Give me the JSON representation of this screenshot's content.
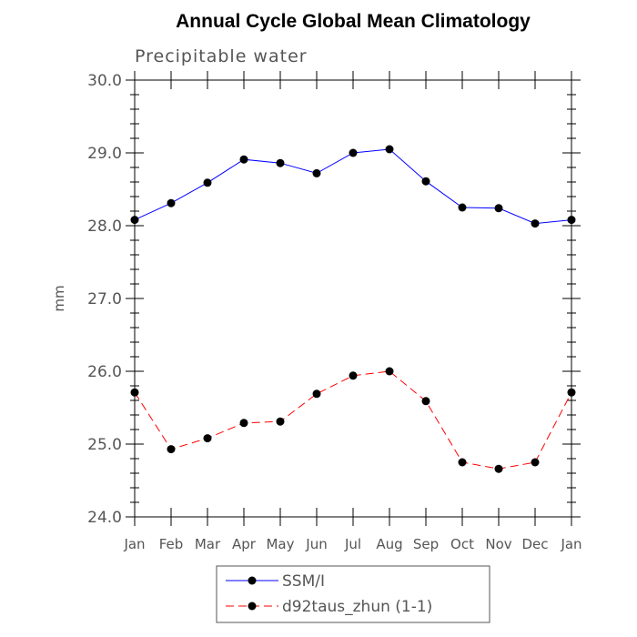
{
  "chart_data": {
    "type": "line",
    "title": "Annual Cycle Global Mean Climatology",
    "subtitle": "Precipitable water",
    "xlabel": "",
    "ylabel": "mm",
    "ylim": [
      24.0,
      30.0
    ],
    "yticks": [
      "24.0",
      "25.0",
      "26.0",
      "27.0",
      "28.0",
      "29.0",
      "30.0"
    ],
    "categories": [
      "Jan",
      "Feb",
      "Mar",
      "Apr",
      "May",
      "Jun",
      "Jul",
      "Aug",
      "Sep",
      "Oct",
      "Nov",
      "Dec",
      "Jan"
    ],
    "series": [
      {
        "name": "SSM/I",
        "color": "#0000ff",
        "dash": "solid",
        "values": [
          28.08,
          28.31,
          28.59,
          28.91,
          28.86,
          28.72,
          29.0,
          29.05,
          28.61,
          28.25,
          28.24,
          28.03,
          28.08
        ]
      },
      {
        "name": "d92taus_zhun (1-1)",
        "color": "#ff0000",
        "dash": "dashed",
        "values": [
          25.71,
          24.93,
          25.08,
          25.29,
          25.31,
          25.69,
          25.94,
          26.0,
          25.59,
          24.75,
          24.66,
          24.75,
          25.71
        ]
      }
    ],
    "grid": false,
    "legend": "bottom-center"
  }
}
